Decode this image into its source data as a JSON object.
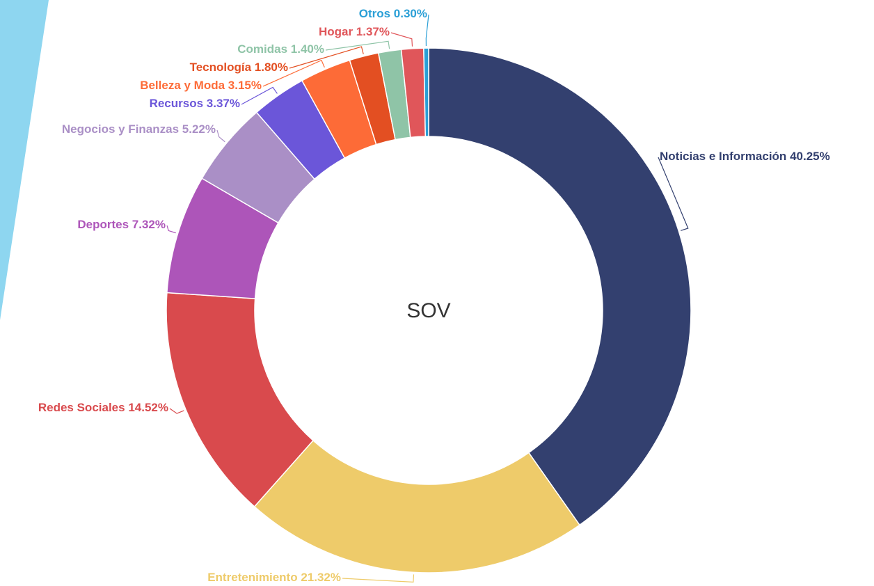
{
  "chart_data": {
    "type": "donut",
    "center_label": "SOV",
    "categories": [
      "Noticias e Información",
      "Entretenimiento",
      "Redes Sociales",
      "Deportes",
      "Negocios y Finanzas",
      "Recursos",
      "Belleza y Moda",
      "Tecnología",
      "Comidas",
      "Hogar",
      "Otros"
    ],
    "values": [
      40.25,
      21.32,
      14.52,
      7.32,
      5.22,
      3.37,
      3.15,
      1.8,
      1.4,
      1.37,
      0.3
    ],
    "value_labels": [
      "40.25%",
      "21.32%",
      "14.52%",
      "7.32%",
      "5.22%",
      "3.37%",
      "3.15%",
      "1.80%",
      "1.40%",
      "1.37%",
      "0.30%"
    ],
    "colors": [
      "#33406f",
      "#eecb6a",
      "#d94a4d",
      "#ad55b9",
      "#aa8fc6",
      "#6b56d9",
      "#fd6b37",
      "#e34f22",
      "#8fc4a7",
      "#e0565a",
      "#2a9fd6"
    ]
  }
}
